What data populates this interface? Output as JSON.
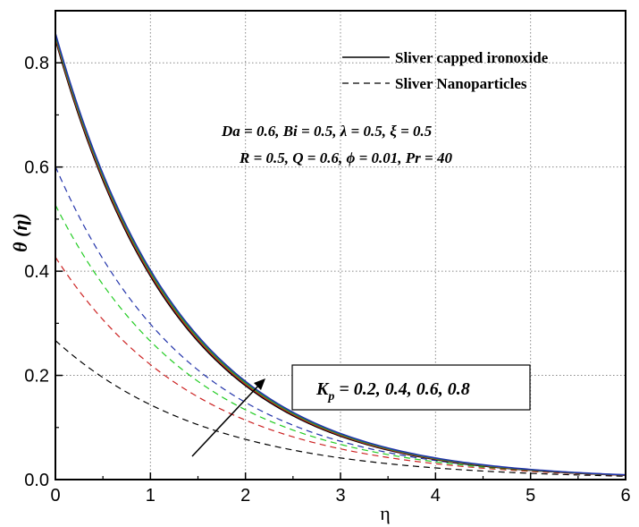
{
  "chart_data": {
    "type": "line",
    "xlabel": "η",
    "ylabel": "θ (η)",
    "xlim": [
      0,
      6
    ],
    "ylim": [
      0,
      0.9
    ],
    "xticks": [
      0,
      1,
      2,
      3,
      4,
      5,
      6
    ],
    "yticks": [
      0.0,
      0.2,
      0.4,
      0.6,
      0.8
    ],
    "ytick_labels": [
      "0.0",
      "0.2",
      "0.4",
      "0.6",
      "0.8"
    ],
    "grid": true,
    "legend": {
      "placement": "top-right",
      "entries": [
        {
          "label": "Sliver capped ironoxide",
          "style": "solid"
        },
        {
          "label": "Sliver Nanoparticles",
          "style": "dashed"
        }
      ]
    },
    "annotations": {
      "params_line1": "Da = 0.6, Bi = 0.5, λ = 0.5, ξ = 0.5",
      "params_line2": "R = 0.5, Q = 0.6, ϕ = 0.01, Pr = 40",
      "kp_symbol": "K",
      "kp_subscript": "p",
      "kp_values": " = 0.2, 0.4, 0.6, 0.8"
    },
    "series": [
      {
        "style": "solid",
        "color": "#000000",
        "theta0": 0.845,
        "k": 0.772
      },
      {
        "style": "solid",
        "color": "#cc2222",
        "theta0": 0.849,
        "k": 0.767
      },
      {
        "style": "solid",
        "color": "#22aa22",
        "theta0": 0.853,
        "k": 0.762
      },
      {
        "style": "solid",
        "color": "#2233aa",
        "theta0": 0.857,
        "k": 0.757
      },
      {
        "style": "dashed",
        "color": "#000000",
        "theta0": 0.267,
        "k": 0.62
      },
      {
        "style": "dashed",
        "color": "#cc2222",
        "theta0": 0.427,
        "k": 0.66
      },
      {
        "style": "dashed",
        "color": "#22cc22",
        "theta0": 0.527,
        "k": 0.685
      },
      {
        "style": "dashed",
        "color": "#2233aa",
        "theta0": 0.601,
        "k": 0.7
      }
    ]
  }
}
